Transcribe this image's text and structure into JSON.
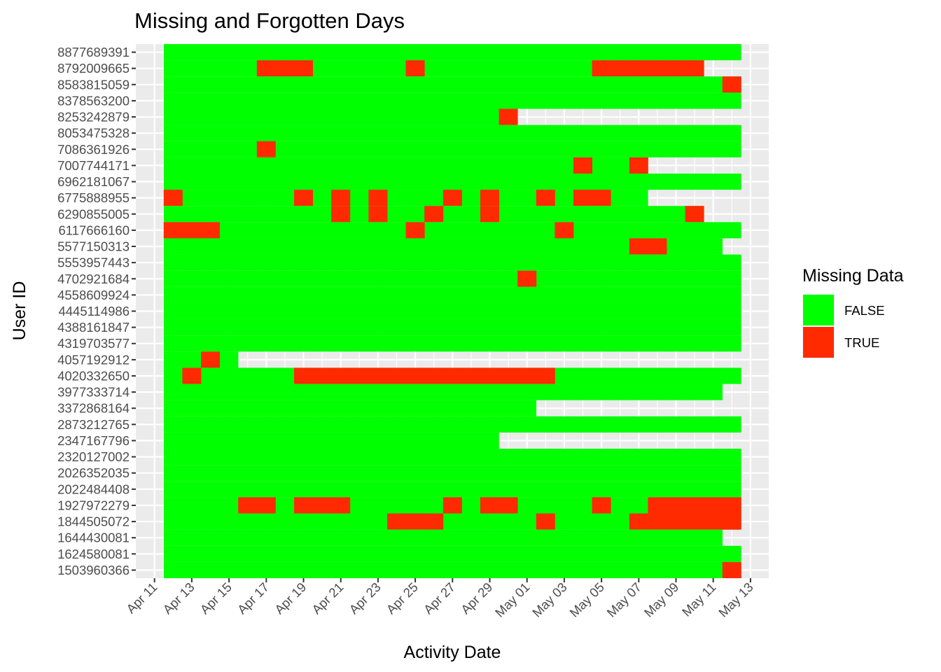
{
  "chart_data": {
    "type": "heatmap",
    "title": "Missing and Forgotten Days",
    "xlabel": "Activity Date",
    "ylabel": "User ID",
    "x_start": "2016-04-12",
    "x_end": "2016-05-12",
    "x_ticks": [
      "Apr 11",
      "Apr 13",
      "Apr 15",
      "Apr 17",
      "Apr 19",
      "Apr 21",
      "Apr 23",
      "Apr 25",
      "Apr 27",
      "Apr 29",
      "May 01",
      "May 03",
      "May 05",
      "May 07",
      "May 09",
      "May 11",
      "May 13"
    ],
    "y_categories": [
      "1503960366",
      "1624580081",
      "1644430081",
      "1844505072",
      "1927972279",
      "2022484408",
      "2026352035",
      "2320127002",
      "2347167796",
      "2873212765",
      "3372868164",
      "3977333714",
      "4020332650",
      "4057192912",
      "4319703577",
      "4388161847",
      "4445114986",
      "4558609924",
      "4702921684",
      "5553957443",
      "5577150313",
      "6117666160",
      "6290855005",
      "6775888955",
      "6962181067",
      "7007744171",
      "7086361926",
      "8053475328",
      "8253242879",
      "8378563200",
      "8583815059",
      "8792009665",
      "8877689391"
    ],
    "grid": true,
    "legend": {
      "title": "Missing Data",
      "position": "right",
      "entries": [
        {
          "label": "FALSE",
          "color": "#00ff00"
        },
        {
          "label": "TRUE",
          "color": "#ff2a00"
        }
      ]
    },
    "rows": [
      {
        "id": "8877689391",
        "last": "2016-05-12",
        "missing": []
      },
      {
        "id": "8792009665",
        "last": "2016-05-10",
        "missing": [
          "2016-04-17",
          "2016-04-18",
          "2016-04-19",
          "2016-04-25",
          "2016-05-05",
          "2016-05-06",
          "2016-05-07",
          "2016-05-08",
          "2016-05-09",
          "2016-05-10"
        ]
      },
      {
        "id": "8583815059",
        "last": "2016-05-12",
        "missing": [
          "2016-05-12"
        ]
      },
      {
        "id": "8378563200",
        "last": "2016-05-12",
        "missing": []
      },
      {
        "id": "8253242879",
        "last": "2016-04-30",
        "missing": [
          "2016-04-30"
        ]
      },
      {
        "id": "8053475328",
        "last": "2016-05-12",
        "missing": []
      },
      {
        "id": "7086361926",
        "last": "2016-05-12",
        "missing": [
          "2016-04-17"
        ]
      },
      {
        "id": "7007744171",
        "last": "2016-05-07",
        "missing": [
          "2016-05-04",
          "2016-05-07"
        ]
      },
      {
        "id": "6962181067",
        "last": "2016-05-12",
        "missing": []
      },
      {
        "id": "6775888955",
        "last": "2016-05-07",
        "missing": [
          "2016-04-12",
          "2016-04-19",
          "2016-04-21",
          "2016-04-23",
          "2016-04-27",
          "2016-04-29",
          "2016-05-02",
          "2016-05-04",
          "2016-05-05"
        ]
      },
      {
        "id": "6290855005",
        "last": "2016-05-10",
        "missing": [
          "2016-04-21",
          "2016-04-23",
          "2016-04-26",
          "2016-04-29",
          "2016-05-10"
        ]
      },
      {
        "id": "6117666160",
        "last": "2016-05-12",
        "missing": [
          "2016-04-12",
          "2016-04-13",
          "2016-04-14",
          "2016-04-25",
          "2016-05-03"
        ]
      },
      {
        "id": "5577150313",
        "last": "2016-05-11",
        "missing": [
          "2016-05-07",
          "2016-05-08"
        ]
      },
      {
        "id": "5553957443",
        "last": "2016-05-12",
        "missing": []
      },
      {
        "id": "4702921684",
        "last": "2016-05-12",
        "missing": [
          "2016-05-01"
        ]
      },
      {
        "id": "4558609924",
        "last": "2016-05-12",
        "missing": []
      },
      {
        "id": "4445114986",
        "last": "2016-05-12",
        "missing": []
      },
      {
        "id": "4388161847",
        "last": "2016-05-12",
        "missing": []
      },
      {
        "id": "4319703577",
        "last": "2016-05-12",
        "missing": []
      },
      {
        "id": "4057192912",
        "last": "2016-04-15",
        "missing": [
          "2016-04-14"
        ]
      },
      {
        "id": "4020332650",
        "last": "2016-05-12",
        "missing": [
          "2016-04-13",
          "2016-04-19",
          "2016-04-20",
          "2016-04-21",
          "2016-04-22",
          "2016-04-23",
          "2016-04-24",
          "2016-04-25",
          "2016-04-26",
          "2016-04-27",
          "2016-04-28",
          "2016-04-29",
          "2016-04-30",
          "2016-05-01",
          "2016-05-02"
        ]
      },
      {
        "id": "3977333714",
        "last": "2016-05-11",
        "missing": []
      },
      {
        "id": "3372868164",
        "last": "2016-05-01",
        "missing": []
      },
      {
        "id": "2873212765",
        "last": "2016-05-12",
        "missing": []
      },
      {
        "id": "2347167796",
        "last": "2016-04-29",
        "missing": []
      },
      {
        "id": "2320127002",
        "last": "2016-05-12",
        "missing": []
      },
      {
        "id": "2026352035",
        "last": "2016-05-12",
        "missing": []
      },
      {
        "id": "2022484408",
        "last": "2016-05-12",
        "missing": []
      },
      {
        "id": "1927972279",
        "last": "2016-05-12",
        "missing": [
          "2016-04-16",
          "2016-04-17",
          "2016-04-19",
          "2016-04-20",
          "2016-04-21",
          "2016-04-27",
          "2016-04-29",
          "2016-04-30",
          "2016-05-05",
          "2016-05-08",
          "2016-05-09",
          "2016-05-10",
          "2016-05-11",
          "2016-05-12"
        ]
      },
      {
        "id": "1844505072",
        "last": "2016-05-12",
        "missing": [
          "2016-04-24",
          "2016-04-25",
          "2016-04-26",
          "2016-05-02",
          "2016-05-07",
          "2016-05-08",
          "2016-05-09",
          "2016-05-10",
          "2016-05-11",
          "2016-05-12"
        ]
      },
      {
        "id": "1644430081",
        "last": "2016-05-11",
        "missing": []
      },
      {
        "id": "1624580081",
        "last": "2016-05-12",
        "missing": []
      },
      {
        "id": "1503960366",
        "last": "2016-05-12",
        "missing": [
          "2016-05-12"
        ]
      }
    ]
  }
}
